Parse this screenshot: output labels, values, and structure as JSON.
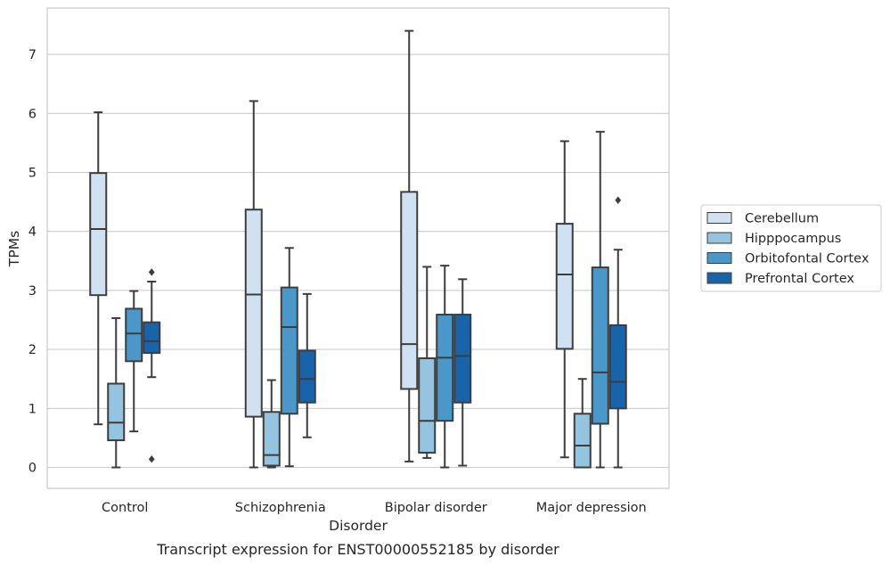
{
  "chart_data": {
    "type": "box",
    "xlabel": "Disorder",
    "ylabel": "TPMs",
    "caption": "Transcript expression for ENST00000552185 by disorder",
    "ylim": [
      -0.35,
      7.75
    ],
    "yticks": [
      0,
      1,
      2,
      3,
      4,
      5,
      6,
      7
    ],
    "grid": "horizontal",
    "legend_position": "right",
    "categories": [
      "Control",
      "Schizophrenia",
      "Bipolar disorder",
      "Major depression"
    ],
    "series": [
      {
        "name": "Cerebellum",
        "color": "#d0e1f2",
        "boxes": [
          {
            "whisker_low": 0.73,
            "q1": 2.92,
            "median": 4.04,
            "q3": 4.99,
            "whisker_high": 6.02,
            "outliers": []
          },
          {
            "whisker_low": 0.0,
            "q1": 0.86,
            "median": 2.93,
            "q3": 4.37,
            "whisker_high": 6.21,
            "outliers": []
          },
          {
            "whisker_low": 0.1,
            "q1": 1.33,
            "median": 2.09,
            "q3": 4.67,
            "whisker_high": 7.4,
            "outliers": []
          },
          {
            "whisker_low": 0.17,
            "q1": 2.01,
            "median": 3.27,
            "q3": 4.13,
            "whisker_high": 5.53,
            "outliers": []
          }
        ]
      },
      {
        "name": "Hipppocampus",
        "color": "#94c4df",
        "boxes": [
          {
            "whisker_low": 0.0,
            "q1": 0.46,
            "median": 0.76,
            "q3": 1.42,
            "whisker_high": 2.53,
            "outliers": []
          },
          {
            "whisker_low": 0.0,
            "q1": 0.03,
            "median": 0.21,
            "q3": 0.94,
            "whisker_high": 1.48,
            "outliers": []
          },
          {
            "whisker_low": 0.16,
            "q1": 0.25,
            "median": 0.79,
            "q3": 1.85,
            "whisker_high": 3.4,
            "outliers": []
          },
          {
            "whisker_low": 0.0,
            "q1": 0.0,
            "median": 0.37,
            "q3": 0.91,
            "whisker_high": 1.5,
            "outliers": []
          }
        ]
      },
      {
        "name": "Orbitofontal Cortex",
        "color": "#4a98c9",
        "boxes": [
          {
            "whisker_low": 0.61,
            "q1": 1.8,
            "median": 2.27,
            "q3": 2.69,
            "whisker_high": 2.99,
            "outliers": []
          },
          {
            "whisker_low": 0.02,
            "q1": 0.91,
            "median": 2.38,
            "q3": 3.05,
            "whisker_high": 3.72,
            "outliers": []
          },
          {
            "whisker_low": 0.0,
            "q1": 0.79,
            "median": 1.86,
            "q3": 2.59,
            "whisker_high": 3.42,
            "outliers": []
          },
          {
            "whisker_low": 0.0,
            "q1": 0.74,
            "median": 1.61,
            "q3": 3.39,
            "whisker_high": 5.69,
            "outliers": []
          }
        ]
      },
      {
        "name": "Prefrontal Cortex",
        "color": "#1764ab",
        "boxes": [
          {
            "whisker_low": 1.53,
            "q1": 1.94,
            "median": 2.14,
            "q3": 2.46,
            "whisker_high": 3.15,
            "outliers": [
              3.31,
              0.14
            ]
          },
          {
            "whisker_low": 0.51,
            "q1": 1.1,
            "median": 1.5,
            "q3": 1.98,
            "whisker_high": 2.94,
            "outliers": []
          },
          {
            "whisker_low": 0.03,
            "q1": 1.1,
            "median": 1.89,
            "q3": 2.59,
            "whisker_high": 3.19,
            "outliers": []
          },
          {
            "whisker_low": 0.0,
            "q1": 1.0,
            "median": 1.45,
            "q3": 2.41,
            "whisker_high": 3.69,
            "outliers": [
              4.53
            ]
          }
        ]
      }
    ]
  }
}
